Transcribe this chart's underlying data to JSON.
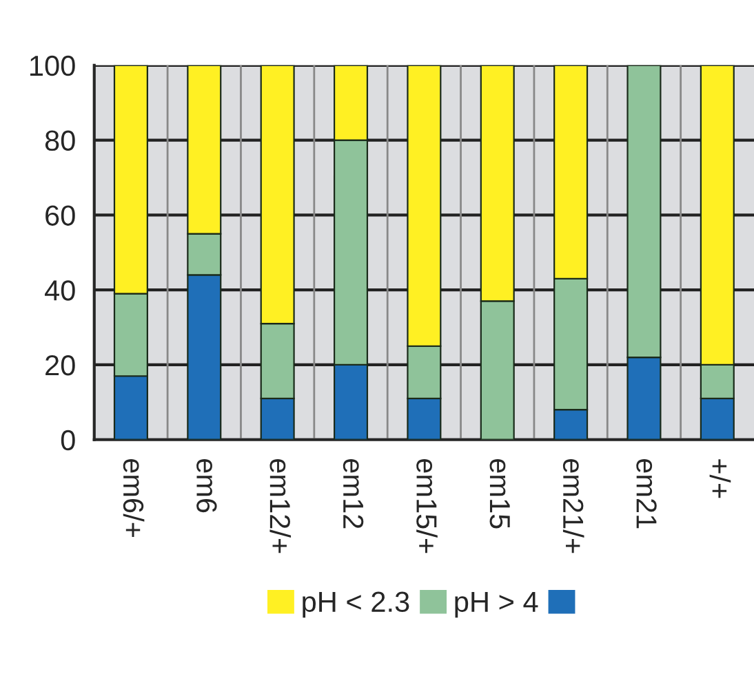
{
  "chart_data": {
    "type": "bar",
    "stacked": true,
    "categories": [
      "em6/+",
      "em6",
      "em12/+",
      "em12",
      "em15/+",
      "em15",
      "em21/+",
      "em21",
      "+/+"
    ],
    "series": [
      {
        "color": "#1f6fb8",
        "values": [
          17,
          44,
          11,
          20,
          11,
          0,
          8,
          22,
          11
        ]
      },
      {
        "name": "pH > 4",
        "color": "#8fc39a",
        "values": [
          22,
          11,
          20,
          60,
          14,
          37,
          35,
          78,
          9
        ]
      },
      {
        "name": "pH < 2.3",
        "color": "#fff023",
        "values": [
          61,
          45,
          69,
          20,
          75,
          63,
          57,
          0,
          80
        ]
      }
    ],
    "ylim": [
      0,
      100
    ],
    "yticks": [
      0,
      20,
      40,
      60,
      80,
      100
    ],
    "grid": true,
    "legend": "bottom"
  }
}
